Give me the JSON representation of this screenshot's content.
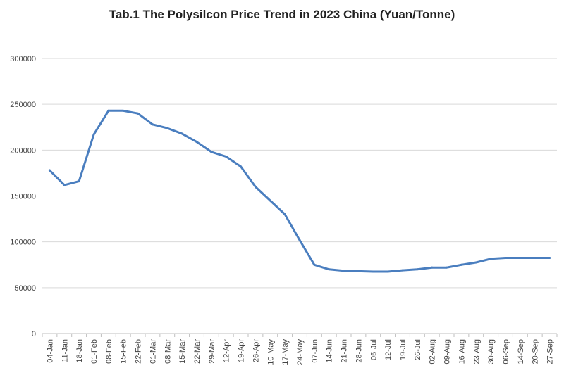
{
  "chart_data": {
    "type": "line",
    "title": "Tab.1 The Polysilcon Price Trend in 2023 China (Yuan/Tonne)",
    "xlabel": "",
    "ylabel": "",
    "ylim": [
      0,
      300000
    ],
    "yticks": [
      "0",
      "50000",
      "100000",
      "150000",
      "200000",
      "250000",
      "300000"
    ],
    "grid": true,
    "legend": "none",
    "line_color": "#4a7ebf",
    "categories": [
      "04-Jan",
      "11-Jan",
      "18-Jan",
      "01-Feb",
      "08-Feb",
      "15-Feb",
      "22-Feb",
      "01-Mar",
      "08-Mar",
      "15-Mar",
      "22-Mar",
      "29-Mar",
      "12-Apr",
      "19-Apr",
      "26-Apr",
      "10-May",
      "17-May",
      "24-May",
      "07-Jun",
      "14-Jun",
      "21-Jun",
      "28-Jun",
      "05-Jul",
      "12-Jul",
      "19-Jul",
      "26-Jul",
      "02-Aug",
      "09-Aug",
      "16-Aug",
      "23-Aug",
      "30-Aug",
      "06-Sep",
      "14-Sep",
      "20-Sep",
      "27-Sep"
    ],
    "values": [
      178000,
      162000,
      166000,
      217000,
      243000,
      243000,
      240000,
      228000,
      224000,
      218000,
      209000,
      198000,
      193000,
      182000,
      160000,
      145000,
      130000,
      102000,
      75000,
      70000,
      68500,
      68000,
      67500,
      67500,
      69000,
      70000,
      72000,
      72000,
      75000,
      77500,
      81500,
      82500,
      82500,
      82500,
      82500
    ]
  }
}
